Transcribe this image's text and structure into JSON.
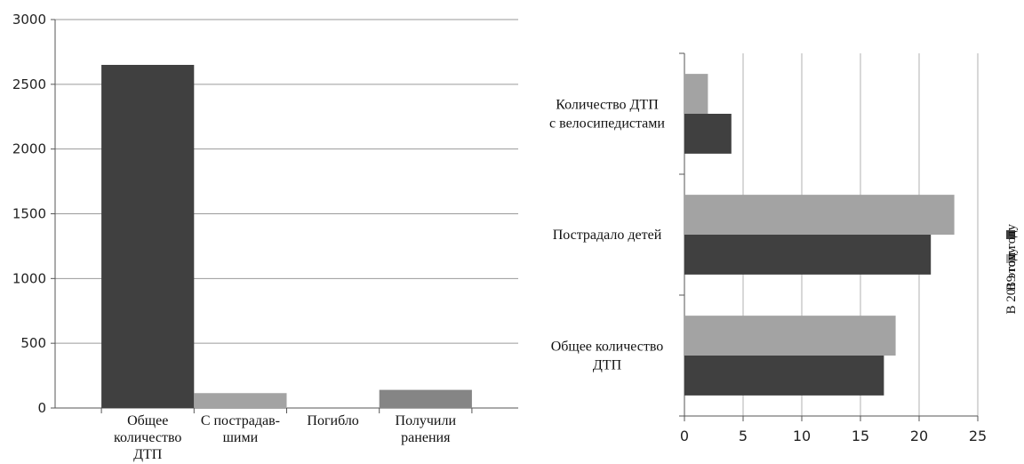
{
  "chart_data": [
    {
      "type": "bar",
      "categories": [
        [
          "Общее",
          "количество",
          "ДТП"
        ],
        [
          "С пострадав-",
          "шими"
        ],
        [
          "Погибло"
        ],
        [
          "Получили",
          "ранения"
        ]
      ],
      "values": [
        2650,
        115,
        0,
        140
      ],
      "ylim": [
        0,
        3000
      ],
      "yticks": [
        0,
        500,
        1000,
        1500,
        2000,
        2500,
        3000
      ],
      "grid": true,
      "colors": [
        "#404040",
        "#a3a3a3",
        "#a3a3a3",
        "#858585"
      ]
    },
    {
      "type": "bar",
      "orientation": "horizontal",
      "categories": [
        [
          "Количество ДТП",
          "с велосипедистами"
        ],
        [
          "Пострадало детей"
        ],
        [
          "Общее количество",
          "ДТП"
        ]
      ],
      "series": [
        {
          "name": "В 2019 году",
          "values": [
            2,
            23,
            18
          ],
          "color": "#a3a3a3"
        },
        {
          "name": "В этом году",
          "values": [
            4,
            21,
            17
          ],
          "color": "#404040"
        }
      ],
      "xlim": [
        0,
        25
      ],
      "xticks": [
        0,
        5,
        10,
        15,
        20,
        25
      ],
      "grid": true,
      "legend": "right"
    }
  ]
}
